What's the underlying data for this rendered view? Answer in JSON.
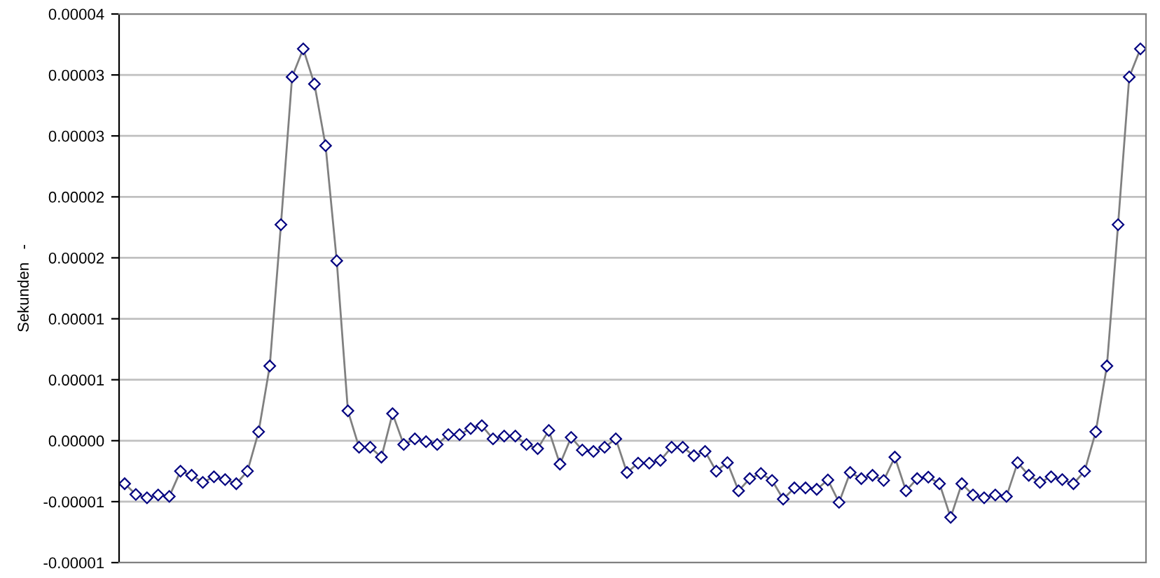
{
  "chart_data": {
    "type": "line",
    "ylabel": "Sekunden   -",
    "categories": [
      null,
      null,
      null,
      null,
      null,
      null,
      null,
      null,
      null,
      null,
      null,
      null,
      null,
      null,
      null,
      null,
      null,
      null,
      null,
      null,
      null,
      null,
      null,
      null,
      null,
      null,
      null,
      null,
      null,
      null,
      null,
      null,
      null,
      null,
      null,
      null,
      null,
      null,
      null,
      null,
      null,
      null,
      null,
      null,
      null,
      null,
      null,
      null,
      null,
      null,
      null,
      null,
      null,
      null,
      null,
      null,
      null,
      null,
      null,
      null,
      null,
      null,
      null,
      null,
      null,
      null,
      null,
      null,
      null,
      null,
      null,
      null,
      null,
      null,
      null,
      null,
      null,
      null,
      null,
      null,
      null,
      null,
      null,
      null,
      null,
      null,
      null,
      null,
      null,
      null,
      null,
      null
    ],
    "series": [
      {
        "color": "#000080",
        "values": [
          -3.53e-06,
          -4.41e-06,
          -4.68e-06,
          -4.45e-06,
          -4.57e-06,
          -2.5e-06,
          -2.84e-06,
          -3.42e-06,
          -2.96e-06,
          -3.19e-06,
          -3.53e-06,
          -2.5e-06,
          7.3e-07,
          6.13e-06,
          1.772e-05,
          2.984e-05,
          3.214e-05,
          2.926e-05,
          2.42e-05,
          1.476e-05,
          2.45e-06,
          -5.4e-07,
          -5.4e-07,
          -1.35e-06,
          2.22e-06,
          -3.1e-07,
          1.5e-07,
          -8e-08,
          -3.1e-07,
          5e-07,
          5e-07,
          1e-06,
          1.23e-06,
          1.5e-07,
          3.8e-07,
          3.8e-07,
          -3.1e-07,
          -6.5e-07,
          8.4e-07,
          -1.92e-06,
          2.7e-07,
          -7.7e-07,
          -8.8e-07,
          -5.4e-07,
          1.5e-07,
          -2.61e-06,
          -1.84e-06,
          -1.84e-06,
          -1.61e-06,
          -5.4e-07,
          -5.4e-07,
          -1.23e-06,
          -8.8e-07,
          -2.5e-06,
          -1.8e-06,
          -4.11e-06,
          -3.11e-06,
          -2.69e-06,
          -3.26e-06,
          -4.79e-06,
          -3.87e-06,
          -3.87e-06,
          -3.99e-06,
          -3.22e-06,
          -5.06e-06,
          -2.61e-06,
          -3.11e-06,
          -2.84e-06,
          -3.26e-06,
          -1.35e-06,
          -4.11e-06,
          -3.11e-06,
          -2.99e-06,
          -3.53e-06,
          -6.29e-06,
          -3.53e-06,
          -4.45e-06,
          -4.68e-06,
          -4.45e-06,
          -4.57e-06,
          -1.8e-06,
          -2.84e-06,
          -3.42e-06,
          -2.96e-06,
          -3.19e-06,
          -3.53e-06,
          -2.5e-06,
          7.3e-07,
          6.13e-06,
          1.772e-05,
          2.984e-05,
          3.214e-05
        ]
      }
    ],
    "ylim": [
      -1e-05,
      3.5e-05
    ],
    "yticks": [
      {
        "value": -1e-05,
        "label": "-0.00001"
      },
      {
        "value": -5e-06,
        "label": "-0.00001"
      },
      {
        "value": 0,
        "label": "0.00000"
      },
      {
        "value": 5e-06,
        "label": "0.00001"
      },
      {
        "value": 1e-05,
        "label": "0.00001"
      },
      {
        "value": 1.5e-05,
        "label": "0.00002"
      },
      {
        "value": 2e-05,
        "label": "0.00002"
      },
      {
        "value": 2.5e-05,
        "label": "0.00003"
      },
      {
        "value": 3e-05,
        "label": "0.00003"
      },
      {
        "value": 3.5e-05,
        "label": "0.00004"
      }
    ],
    "grid": "y",
    "marker": "diamond",
    "line_style": "solid",
    "tick_labels": "y"
  }
}
